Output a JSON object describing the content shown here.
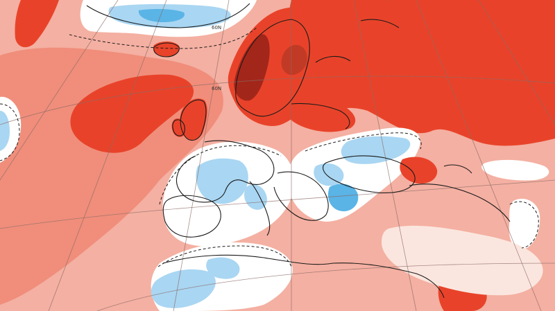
{
  "map": {
    "type": "temperature-anomaly",
    "palette": {
      "very_warm": "#a3261a",
      "warm_strong": "#e8432a",
      "warm": "#f08e7b",
      "warm_light": "#f4b0a2",
      "neutral": "#fbe6df",
      "cool_light": "#ffffff",
      "cool": "#a9d6f2",
      "cold": "#5ab4e6",
      "coastline": "#1a1a1a",
      "graticule": "#8a6a66"
    },
    "graticule_labels": [
      "60N",
      "60N"
    ]
  }
}
